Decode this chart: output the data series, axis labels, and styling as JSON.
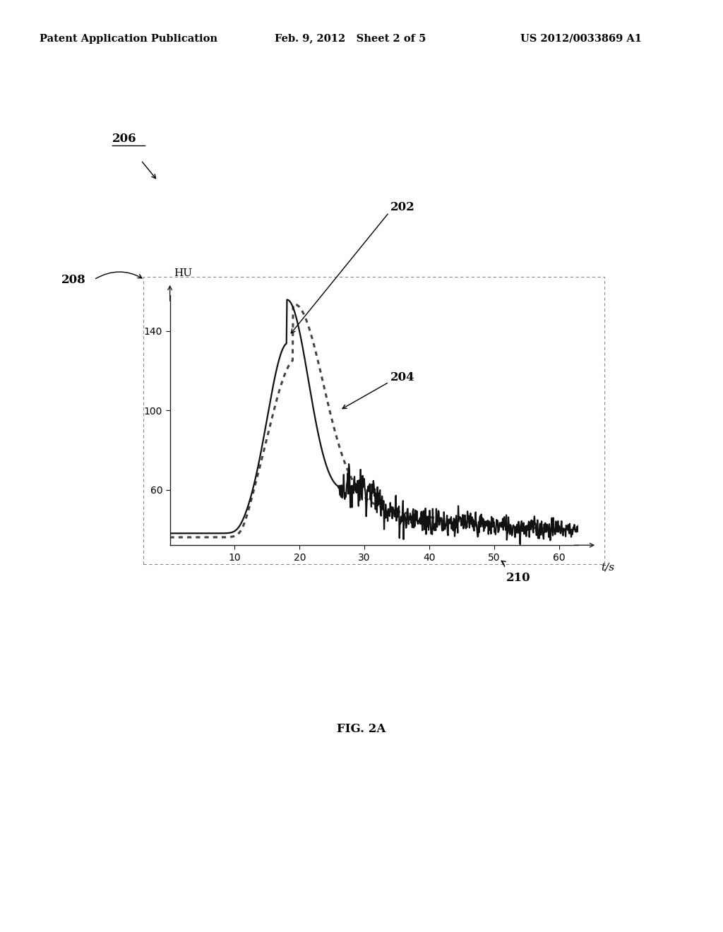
{
  "header_left": "Patent Application Publication",
  "header_mid": "Feb. 9, 2012   Sheet 2 of 5",
  "header_right": "US 2012/0033869 A1",
  "fig_label": "FIG. 2A",
  "label_206": "206",
  "label_208": "208",
  "label_210": "210",
  "label_202": "202",
  "label_204": "204",
  "ylabel": "HU",
  "xlabel": "t/s",
  "yticks": [
    60,
    100,
    140
  ],
  "xticks": [
    10,
    20,
    30,
    40,
    50,
    60
  ],
  "xlim": [
    0,
    63
  ],
  "ylim": [
    32,
    158
  ],
  "background_color": "#ffffff",
  "line_color": "#111111",
  "dotted_color": "#444444"
}
